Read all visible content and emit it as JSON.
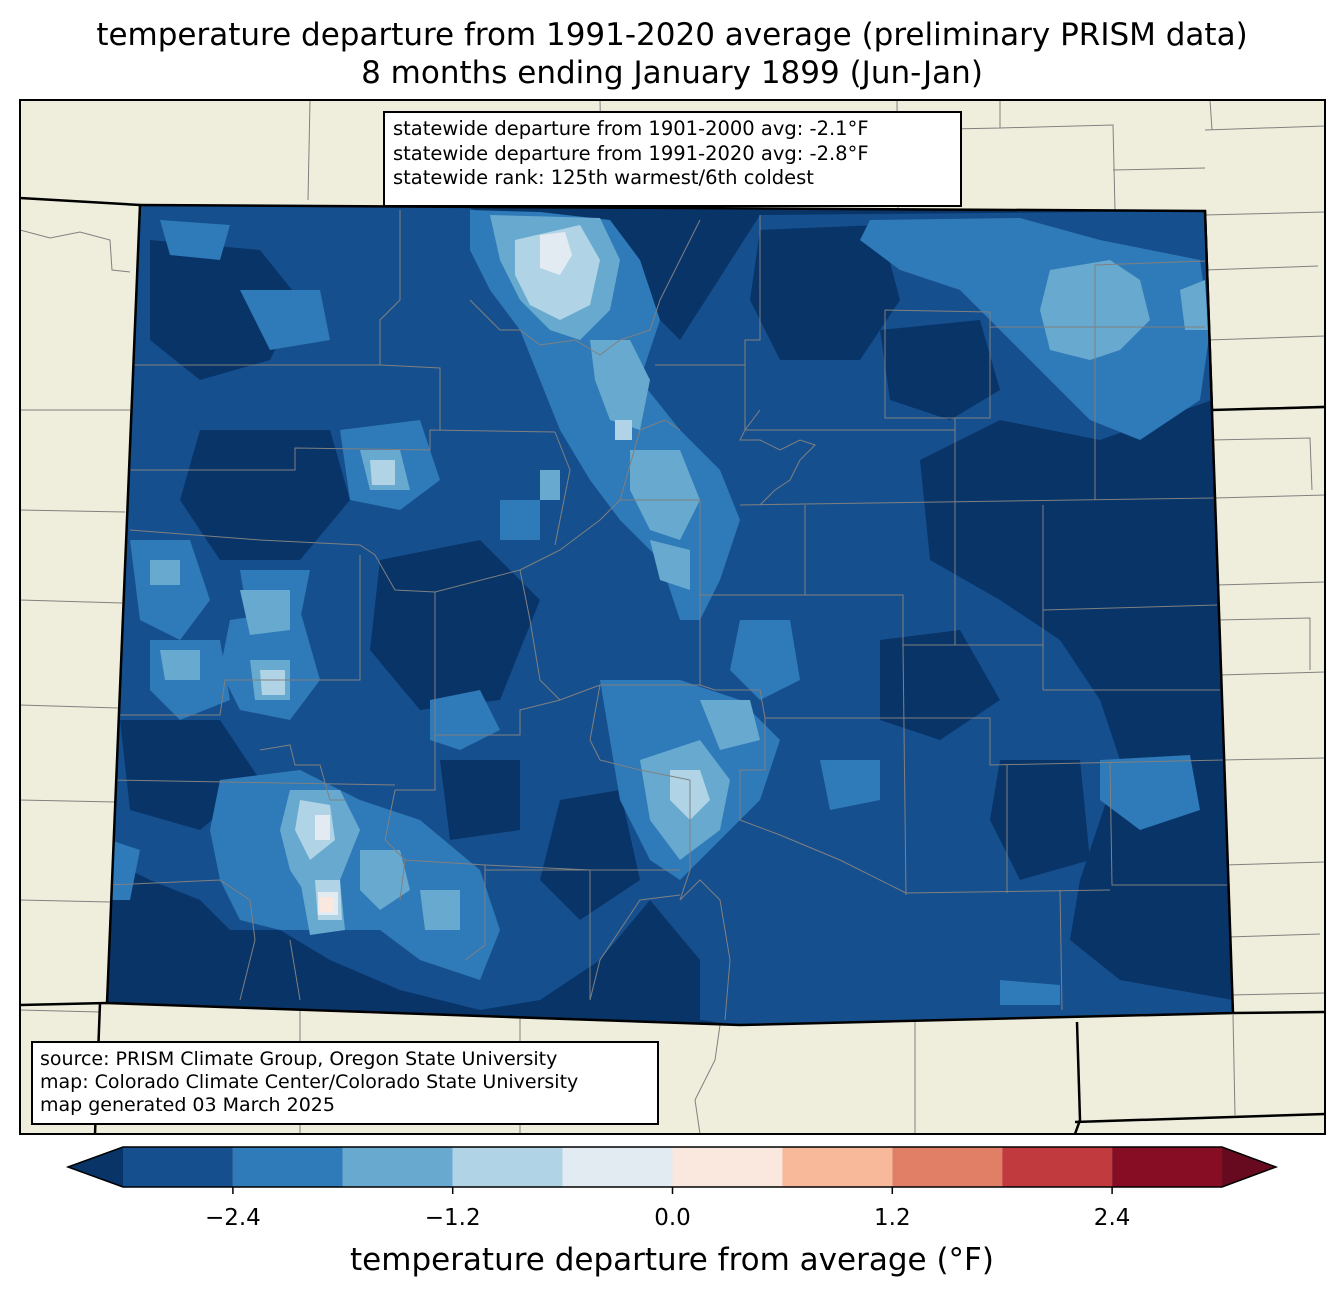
{
  "title": {
    "line1": "temperature departure from 1991-2020 average (preliminary PRISM data)",
    "line2": "8 months ending January 1899 (Jun-Jan)"
  },
  "stats_box": {
    "line1": "statewide departure from 1901-2000 avg: -2.1°F",
    "line2": "statewide departure from 1991-2020 avg: -2.8°F",
    "line3": "statewide rank: 125th warmest/6th coldest"
  },
  "source_box": {
    "line1": "source: PRISM Climate Group, Oregon State University",
    "line2": "map: Colorado Climate Center/Colorado State University",
    "line3": "map generated 03 March 2025"
  },
  "colorbar": {
    "label": "temperature departure from average (°F)",
    "min": -3.0,
    "max": 3.0,
    "bin_edges": [
      -3.0,
      -2.4,
      -1.8,
      -1.2,
      -0.6,
      0.0,
      0.6,
      1.2,
      1.8,
      2.4,
      3.0
    ],
    "colors": [
      "#164f8e",
      "#2f7ab8",
      "#68aacf",
      "#b0d4e6",
      "#e3ebf2",
      "#fae7dd",
      "#f7b99a",
      "#e07f65",
      "#c03a3e",
      "#860d24"
    ],
    "under_color": "#083468",
    "over_color": "#670a1f",
    "ticks": [
      {
        "value": -2.4,
        "label": "−2.4"
      },
      {
        "value": -1.2,
        "label": "−1.2"
      },
      {
        "value": 0.0,
        "label": "0.0"
      },
      {
        "value": 1.2,
        "label": "1.2"
      },
      {
        "value": 2.4,
        "label": "2.4"
      }
    ]
  },
  "colors": {
    "land_background": "#efeedc",
    "county_lines": "#808080",
    "state_border": "#000000",
    "coldest": "#083468"
  }
}
